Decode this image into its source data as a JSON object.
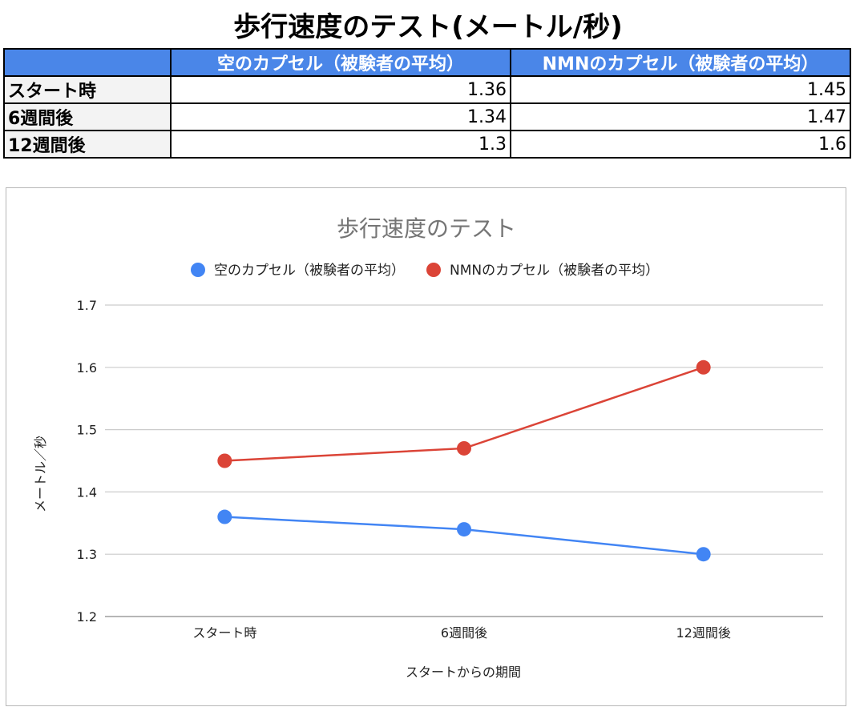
{
  "page_title": "歩行速度のテスト(メートル/秒)",
  "table": {
    "headers": [
      "",
      "空のカプセル（被験者の平均）",
      "NMNのカプセル（被験者の平均）"
    ],
    "rows": [
      {
        "label": "スタート時",
        "placebo": "1.36",
        "nmn": "1.45"
      },
      {
        "label": "6週間後",
        "placebo": "1.34",
        "nmn": "1.47"
      },
      {
        "label": "12週間後",
        "placebo": "1.3",
        "nmn": "1.6"
      }
    ]
  },
  "colors": {
    "placebo": "#4285f4",
    "nmn": "#db4437",
    "header_bg": "#4a86e8"
  },
  "chart_data": {
    "type": "line",
    "title": "歩行速度のテスト",
    "xlabel": "スタートからの期間",
    "ylabel": "メートル／秒",
    "categories": [
      "スタート時",
      "6週間後",
      "12週間後"
    ],
    "series": [
      {
        "name": "空のカプセル（被験者の平均）",
        "values": [
          1.36,
          1.34,
          1.3
        ],
        "color": "#4285f4"
      },
      {
        "name": "NMNのカプセル（被験者の平均）",
        "values": [
          1.45,
          1.47,
          1.6
        ],
        "color": "#db4437"
      }
    ],
    "ylim": [
      1.2,
      1.7
    ],
    "yticks": [
      "1.2",
      "1.3",
      "1.4",
      "1.5",
      "1.6",
      "1.7"
    ],
    "grid": true,
    "legend": "top"
  }
}
